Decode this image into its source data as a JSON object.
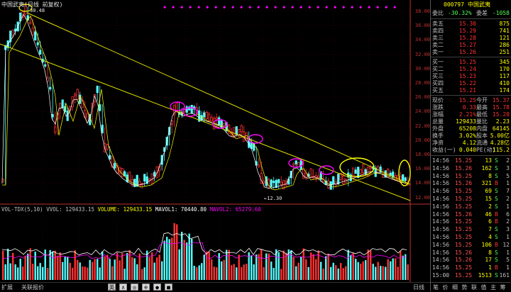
{
  "header": {
    "title": "中国武夷(日线 前复权)",
    "peak_label": "30.48",
    "low_label": "←12.30"
  },
  "price_axis": [
    "38.00",
    "36.00",
    "34.00",
    "32.00",
    "30.00",
    "28.00",
    "26.00",
    "24.00",
    "22.00",
    "20.00",
    "18.00",
    "16.00",
    "14.00",
    "12.00"
  ],
  "volume_legend": {
    "main": "VOL-TDX(5,10) VVOL: 129433.15",
    "volume": "VOLUME: 129433.15",
    "mavol1": "MAVOL1: 70440.80",
    "mavol2": "MAVOL2: 65279.60"
  },
  "bottom_bar": {
    "left1": "扩展",
    "left2": "关联报价",
    "tools": [
      "英",
      "∧",
      "◎",
      "⊕",
      "●",
      "■"
    ],
    "right": "日线"
  },
  "quote": {
    "code": "000797",
    "name": "中国武夷",
    "weibi_label": "委比",
    "weibi": "-30.32%",
    "weicha_label": "委差",
    "weicha": "-1058",
    "asks": [
      {
        "label": "卖五",
        "price": "15.30",
        "vol": "875"
      },
      {
        "label": "卖四",
        "price": "15.29",
        "vol": "741"
      },
      {
        "label": "卖三",
        "price": "15.28",
        "vol": "121"
      },
      {
        "label": "卖二",
        "price": "15.27",
        "vol": "286"
      },
      {
        "label": "卖一",
        "price": "15.26",
        "vol": "251"
      }
    ],
    "bids": [
      {
        "label": "买一",
        "price": "15.25",
        "vol": "345"
      },
      {
        "label": "买二",
        "price": "15.24",
        "vol": "170"
      },
      {
        "label": "买三",
        "price": "15.23",
        "vol": "117"
      },
      {
        "label": "买四",
        "price": "15.22",
        "vol": "410"
      },
      {
        "label": "买五",
        "price": "15.21",
        "vol": "174"
      }
    ],
    "stats": [
      {
        "l1": "现价",
        "v1": "15.25",
        "l2": "今开",
        "v2": "15.37"
      },
      {
        "l1": "涨跌",
        "v1": "0.33",
        "l2": "最高",
        "v2": "15.78"
      },
      {
        "l1": "涨幅",
        "v1": "2.21%",
        "l2": "最低",
        "v2": "15.20"
      },
      {
        "l1": "总量",
        "v1": "129433",
        "l2": "量比",
        "v2": "2.23"
      },
      {
        "l1": "外盘",
        "v1": "65208",
        "l2": "内盘",
        "v2": "64145"
      },
      {
        "l1": "换手",
        "v1": "3.02%",
        "l2": "股本",
        "v2": "5.00亿"
      },
      {
        "l1": "净资",
        "v1": "4.12",
        "l2": "流通",
        "v2": "4.28亿"
      },
      {
        "l1": "收益(一)",
        "v1": "0.040",
        "l2": "PE(动)",
        "v2": "115.2"
      }
    ],
    "ticks": [
      {
        "t": "14:56",
        "p": "15.25",
        "v": "13",
        "d": "S",
        "n": "2"
      },
      {
        "t": "14:56",
        "p": "15.26",
        "v": "162",
        "d": "S",
        "n": "3"
      },
      {
        "t": "14:56",
        "p": "15.25",
        "v": "8",
        "d": "S",
        "n": "5"
      },
      {
        "t": "14:56",
        "p": "15.26",
        "v": "321",
        "d": "B",
        "n": "1"
      },
      {
        "t": "14:56",
        "p": "15.25",
        "v": "69",
        "d": "S",
        "n": "7"
      },
      {
        "t": "14:56",
        "p": "15.25",
        "v": "15",
        "d": "S",
        "n": "2"
      },
      {
        "t": "14:56",
        "p": "15.25",
        "v": "2",
        "d": "S",
        "n": "1"
      },
      {
        "t": "14:56",
        "p": "15.26",
        "v": "46",
        "d": "B",
        "n": "6"
      },
      {
        "t": "14:56",
        "p": "15.25",
        "v": "6",
        "d": "B",
        "n": "2"
      },
      {
        "t": "14:56",
        "p": "15.25",
        "v": "7",
        "d": "S",
        "n": "3"
      },
      {
        "t": "14:56",
        "p": "15.25",
        "v": "4",
        "d": "S",
        "n": "1"
      },
      {
        "t": "14:56",
        "p": "15.25",
        "v": "106",
        "d": "B",
        "n": "12"
      },
      {
        "t": "14:56",
        "p": "15.26",
        "v": "8",
        "d": "S",
        "n": "1"
      },
      {
        "t": "14:56",
        "p": "15.26",
        "v": "17",
        "d": "S",
        "n": "5"
      },
      {
        "t": "14:56",
        "p": "15.25",
        "v": "1",
        "d": "B",
        "n": "1"
      },
      {
        "t": "15:00",
        "p": "15.25",
        "v": "1513",
        "d": "S",
        "n": "161"
      }
    ],
    "tabs": [
      "笔",
      "价",
      "细",
      "势",
      "联",
      "值",
      "主",
      "筹"
    ]
  },
  "colors": {
    "up": "#ff3232",
    "down": "#54fcfc",
    "trendline": "#e0e000",
    "circle_magenta": "#ff00ff",
    "circle_yellow": "#ffff00"
  }
}
